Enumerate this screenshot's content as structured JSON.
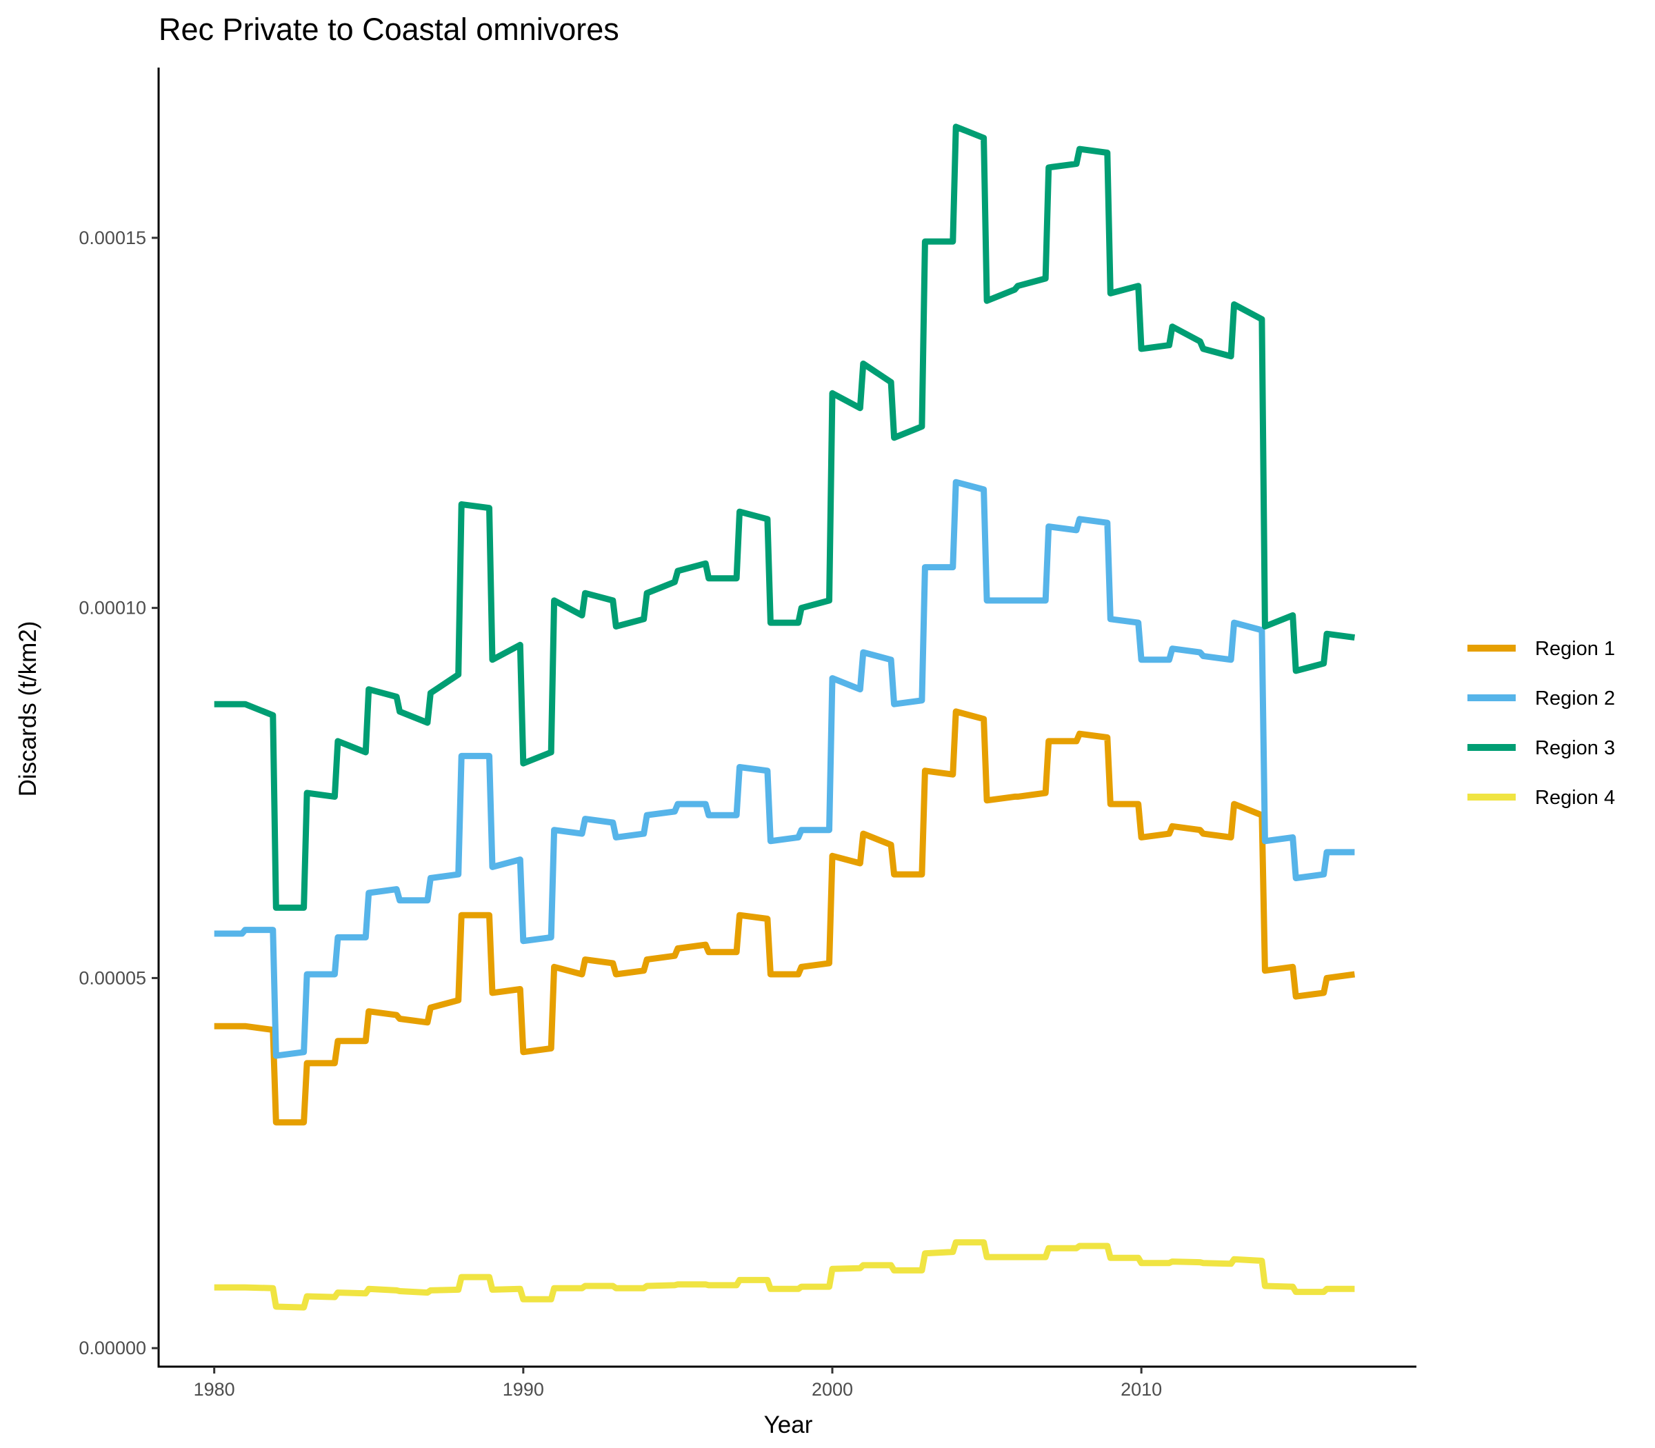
{
  "chart_data": {
    "type": "line",
    "title": "Rec Private to Coastal omnivores",
    "xlabel": "Year",
    "ylabel": "Discards (t/km2)",
    "xlim": [
      1978.2,
      2018.9
    ],
    "ylim": [
      -2.5e-06,
      0.000173
    ],
    "x_ticks": [
      1980,
      1990,
      2000,
      2010
    ],
    "x_tick_labels": [
      "1980",
      "1990",
      "2000",
      "2010"
    ],
    "y_ticks": [
      0,
      5e-05,
      0.0001,
      0.00015
    ],
    "y_tick_labels": [
      "0.00000",
      "0.00005",
      "0.00010",
      "0.00015"
    ],
    "grid": false,
    "legend_position": "right",
    "x": [
      1980,
      1981,
      1982,
      1983,
      1984,
      1985,
      1986,
      1987,
      1988,
      1989,
      1990,
      1991,
      1992,
      1993,
      1994,
      1995,
      1996,
      1997,
      1998,
      1999,
      2000,
      2001,
      2002,
      2003,
      2004,
      2005,
      2006,
      2007,
      2008,
      2009,
      2010,
      2011,
      2012,
      2013,
      2014,
      2015,
      2016
    ],
    "series": [
      {
        "name": "Region 1",
        "color": "#E69F00",
        "start": [
          4.35e-05,
          4.35e-05,
          3.05e-05,
          3.85e-05,
          4.15e-05,
          4.55e-05,
          4.45e-05,
          4.6e-05,
          5.85e-05,
          4.8e-05,
          4e-05,
          5.15e-05,
          5.25e-05,
          5.05e-05,
          5.25e-05,
          5.4e-05,
          5.35e-05,
          5.85e-05,
          5.05e-05,
          5.15e-05,
          6.65e-05,
          6.95e-05,
          6.4e-05,
          7.8e-05,
          8.6e-05,
          7.4e-05,
          7.45e-05,
          8.2e-05,
          8.3e-05,
          7.35e-05,
          6.9e-05,
          7.05e-05,
          6.95e-05,
          7.35e-05,
          5.1e-05,
          4.75e-05,
          5e-05
        ],
        "end": [
          4.35e-05,
          4.3e-05,
          3.05e-05,
          3.85e-05,
          4.15e-05,
          4.5e-05,
          4.4e-05,
          4.7e-05,
          5.85e-05,
          4.85e-05,
          4.05e-05,
          5.05e-05,
          5.2e-05,
          5.1e-05,
          5.3e-05,
          5.45e-05,
          5.35e-05,
          5.8e-05,
          5.05e-05,
          5.2e-05,
          6.55e-05,
          6.8e-05,
          6.4e-05,
          7.75e-05,
          8.5e-05,
          7.45e-05,
          7.5e-05,
          8.2e-05,
          8.25e-05,
          7.35e-05,
          6.95e-05,
          7e-05,
          6.9e-05,
          7.2e-05,
          5.15e-05,
          4.8e-05,
          5.05e-05
        ]
      },
      {
        "name": "Region 2",
        "color": "#56B4E9",
        "start": [
          5.6e-05,
          5.65e-05,
          3.95e-05,
          5.05e-05,
          5.55e-05,
          6.15e-05,
          6.05e-05,
          6.35e-05,
          8e-05,
          6.5e-05,
          5.5e-05,
          7e-05,
          7.15e-05,
          6.9e-05,
          7.2e-05,
          7.35e-05,
          7.2e-05,
          7.85e-05,
          6.85e-05,
          7e-05,
          9.05e-05,
          9.4e-05,
          8.7e-05,
          0.0001055,
          0.000117,
          0.000101,
          0.000101,
          0.000111,
          0.000112,
          9.85e-05,
          9.3e-05,
          9.45e-05,
          9.35e-05,
          9.8e-05,
          6.85e-05,
          6.35e-05,
          6.7e-05
        ],
        "end": [
          5.6e-05,
          5.65e-05,
          4e-05,
          5.05e-05,
          5.55e-05,
          6.2e-05,
          6.05e-05,
          6.4e-05,
          8e-05,
          6.6e-05,
          5.55e-05,
          6.95e-05,
          7.1e-05,
          6.95e-05,
          7.25e-05,
          7.35e-05,
          7.2e-05,
          7.8e-05,
          6.9e-05,
          7e-05,
          8.9e-05,
          9.3e-05,
          8.75e-05,
          0.0001055,
          0.000116,
          0.000101,
          0.000101,
          0.0001105,
          0.0001115,
          9.8e-05,
          9.3e-05,
          9.4e-05,
          9.3e-05,
          9.7e-05,
          6.9e-05,
          6.4e-05,
          6.7e-05
        ]
      },
      {
        "name": "Region 3",
        "color": "#009E73",
        "start": [
          8.7e-05,
          8.7e-05,
          5.95e-05,
          7.5e-05,
          8.2e-05,
          8.9e-05,
          8.6e-05,
          8.85e-05,
          0.000114,
          9.3e-05,
          7.9e-05,
          0.000101,
          0.000102,
          9.75e-05,
          0.000102,
          0.000105,
          0.000104,
          0.000113,
          9.8e-05,
          0.0001,
          0.000129,
          0.000133,
          0.000123,
          0.0001495,
          0.000165,
          0.0001415,
          0.0001435,
          0.0001595,
          0.000162,
          0.0001425,
          0.000135,
          0.000138,
          0.000135,
          0.000141,
          9.75e-05,
          9.15e-05,
          9.65e-05
        ],
        "end": [
          8.7e-05,
          8.55e-05,
          5.95e-05,
          7.45e-05,
          8.05e-05,
          8.8e-05,
          8.45e-05,
          9.1e-05,
          0.0001135,
          9.5e-05,
          8.05e-05,
          9.9e-05,
          0.000101,
          9.85e-05,
          0.0001035,
          0.000106,
          0.000104,
          0.000112,
          9.8e-05,
          0.000101,
          0.000127,
          0.0001305,
          0.0001245,
          0.0001495,
          0.0001635,
          0.000143,
          0.0001445,
          0.00016,
          0.0001615,
          0.0001435,
          0.0001355,
          0.000136,
          0.000134,
          0.000139,
          9.9e-05,
          9.25e-05,
          9.6e-05
        ]
      },
      {
        "name": "Region 4",
        "color": "#F0E442",
        "start": [
          8.2e-06,
          8.2e-06,
          5.6e-06,
          7e-06,
          7.5e-06,
          8e-06,
          7.7e-06,
          7.8e-06,
          9.6e-06,
          7.9e-06,
          6.6e-06,
          8.1e-06,
          8.4e-06,
          8.1e-06,
          8.4e-06,
          8.6e-06,
          8.5e-06,
          9.2e-06,
          8e-06,
          8.3e-06,
          1.07e-05,
          1.12e-05,
          1.05e-05,
          1.28e-05,
          1.43e-05,
          1.23e-05,
          1.23e-05,
          1.35e-05,
          1.38e-05,
          1.22e-05,
          1.15e-05,
          1.17e-05,
          1.15e-05,
          1.2e-05,
          8.4e-06,
          7.6e-06,
          8e-06
        ],
        "end": [
          8.2e-06,
          8.1e-06,
          5.5e-06,
          6.9e-06,
          7.4e-06,
          7.8e-06,
          7.5e-06,
          7.9e-06,
          9.6e-06,
          8e-06,
          6.6e-06,
          8.1e-06,
          8.4e-06,
          8.1e-06,
          8.5e-06,
          8.6e-06,
          8.5e-06,
          9.2e-06,
          8e-06,
          8.3e-06,
          1.08e-05,
          1.12e-05,
          1.05e-05,
          1.3e-05,
          1.43e-05,
          1.23e-05,
          1.23e-05,
          1.35e-05,
          1.38e-05,
          1.22e-05,
          1.15e-05,
          1.16e-05,
          1.14e-05,
          1.18e-05,
          8.3e-06,
          7.6e-06,
          8e-06
        ]
      }
    ]
  }
}
